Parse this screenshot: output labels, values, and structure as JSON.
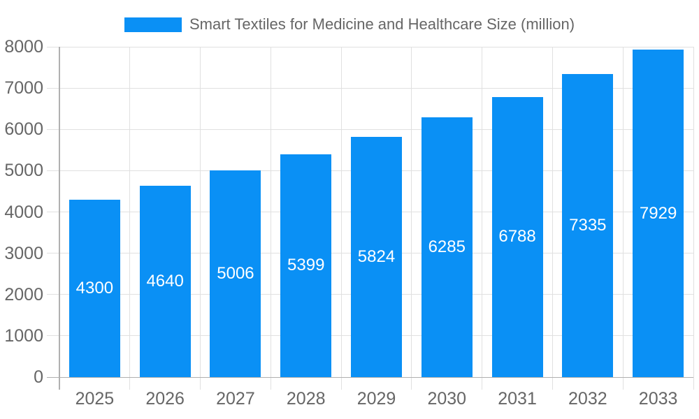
{
  "legend": {
    "position": "top",
    "label": "Smart Textiles for Medicine and Healthcare Size (million)"
  },
  "chart_data": {
    "type": "bar",
    "title": "Smart Textiles for Medicine and Healthcare Size (million)",
    "categories": [
      "2025",
      "2026",
      "2027",
      "2028",
      "2029",
      "2030",
      "2031",
      "2032",
      "2033"
    ],
    "values": [
      4300,
      4640,
      5006,
      5399,
      5824,
      6285,
      6788,
      7335,
      7929
    ],
    "xlabel": "",
    "ylabel": "",
    "ylim": [
      0,
      8000
    ],
    "y_ticks": [
      0,
      1000,
      2000,
      3000,
      4000,
      5000,
      6000,
      7000,
      8000
    ],
    "grid": true,
    "legend_position": "top",
    "colors": {
      "bar": "#0a90f5",
      "value_label": "#ffffff",
      "grid_line": "#e0e0e0",
      "axis_line": "#b0b0b0",
      "axis_text": "#666666",
      "background": "#ffffff"
    }
  }
}
